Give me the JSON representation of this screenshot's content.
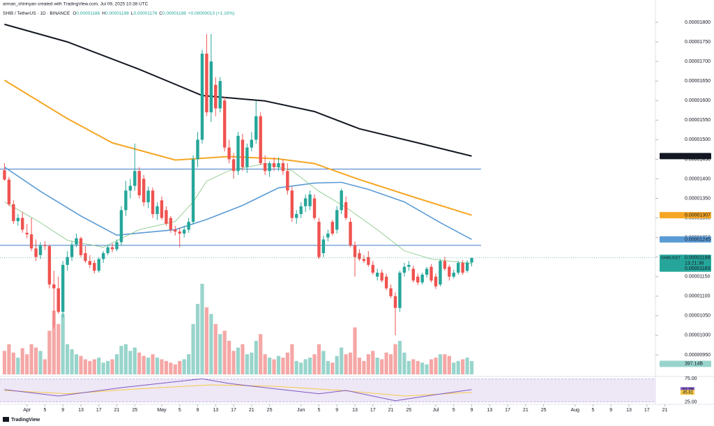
{
  "header": "arman_shirinyan created with TradingView.com, Jul 09, 2025 10:38 UTC",
  "brand": "TradingView",
  "chart_data": {
    "type": "candlestick",
    "symbol_line": "SHIB / TetherUS · 1D · BINANCE",
    "ohlc_labels": [
      "O",
      "H",
      "L",
      "C"
    ],
    "change": "+0.00000013 (+1.10%)",
    "symbol": "SHIBUSDT",
    "countdown": "13:21:38",
    "up_color": "#26a69a",
    "down_color": "#ef5350",
    "volume_up_color": "#98d4cb",
    "volume_down_color": "#f4a7a6",
    "xlim": [
      "2025-03-26",
      "2025-08-22"
    ],
    "ylim": [
      9e-06,
      1.85e-05
    ],
    "yticks": [
      {
        "value": 9.5e-06,
        "label": "0.00000950"
      },
      {
        "value": 1e-05,
        "label": "0.00001000"
      },
      {
        "value": 1.05e-05,
        "label": "0.00001050"
      },
      {
        "value": 1.1e-05,
        "label": "0.00001100"
      },
      {
        "value": 1.15e-05,
        "label": "0.00001150"
      },
      {
        "value": 1.2e-05,
        "label": "0.00001200"
      },
      {
        "value": 1.25e-05,
        "label": "0.00001250"
      },
      {
        "value": 1.3e-05,
        "label": "0.00001300"
      },
      {
        "value": 1.35e-05,
        "label": "0.00001350"
      },
      {
        "value": 1.4e-05,
        "label": "0.00001400"
      },
      {
        "value": 1.45e-05,
        "label": "0.00001450"
      },
      {
        "value": 1.5e-05,
        "label": "0.00001500"
      },
      {
        "value": 1.55e-05,
        "label": "0.00001550"
      },
      {
        "value": 1.6e-05,
        "label": "0.00001600"
      },
      {
        "value": 1.65e-05,
        "label": "0.00001650"
      },
      {
        "value": 1.7e-05,
        "label": "0.00001700"
      },
      {
        "value": 1.75e-05,
        "label": "0.00001750"
      },
      {
        "value": 1.8e-05,
        "label": "0.00001800"
      }
    ],
    "xticks": [
      {
        "value": "2025-04-01",
        "label": "Apr"
      },
      {
        "value": "2025-04-05",
        "label": "5"
      },
      {
        "value": "2025-04-09",
        "label": "9"
      },
      {
        "value": "2025-04-13",
        "label": "13"
      },
      {
        "value": "2025-04-17",
        "label": "17"
      },
      {
        "value": "2025-04-21",
        "label": "21"
      },
      {
        "value": "2025-04-25",
        "label": "25"
      },
      {
        "value": "2025-05-01",
        "label": "May"
      },
      {
        "value": "2025-05-05",
        "label": "5"
      },
      {
        "value": "2025-05-09",
        "label": "9"
      },
      {
        "value": "2025-05-13",
        "label": "13"
      },
      {
        "value": "2025-05-17",
        "label": "17"
      },
      {
        "value": "2025-05-21",
        "label": "21"
      },
      {
        "value": "2025-05-25",
        "label": "25"
      },
      {
        "value": "2025-06-01",
        "label": "Jun"
      },
      {
        "value": "2025-06-05",
        "label": "5"
      },
      {
        "value": "2025-06-09",
        "label": "9"
      },
      {
        "value": "2025-06-13",
        "label": "13"
      },
      {
        "value": "2025-06-17",
        "label": "17"
      },
      {
        "value": "2025-06-21",
        "label": "21"
      },
      {
        "value": "2025-06-25",
        "label": "25"
      },
      {
        "value": "2025-07-01",
        "label": "Jul"
      },
      {
        "value": "2025-07-05",
        "label": "5"
      },
      {
        "value": "2025-07-09",
        "label": "9"
      },
      {
        "value": "2025-07-13",
        "label": "13"
      },
      {
        "value": "2025-07-17",
        "label": "17"
      },
      {
        "value": "2025-07-21",
        "label": "21"
      },
      {
        "value": "2025-07-25",
        "label": "25"
      },
      {
        "value": "2025-08-01",
        "label": "Aug"
      },
      {
        "value": "2025-08-05",
        "label": "5"
      },
      {
        "value": "2025-08-09",
        "label": "9"
      },
      {
        "value": "2025-08-13",
        "label": "13"
      },
      {
        "value": "2025-08-17",
        "label": "17"
      },
      {
        "value": "2025-08-21",
        "label": "21"
      }
    ],
    "x": [
      "2025-03-27",
      "2025-03-28",
      "2025-03-29",
      "2025-03-30",
      "2025-03-31",
      "2025-04-01",
      "2025-04-02",
      "2025-04-03",
      "2025-04-04",
      "2025-04-05",
      "2025-04-06",
      "2025-04-07",
      "2025-04-08",
      "2025-04-09",
      "2025-04-10",
      "2025-04-11",
      "2025-04-12",
      "2025-04-13",
      "2025-04-14",
      "2025-04-15",
      "2025-04-16",
      "2025-04-17",
      "2025-04-18",
      "2025-04-19",
      "2025-04-20",
      "2025-04-21",
      "2025-04-22",
      "2025-04-23",
      "2025-04-24",
      "2025-04-25",
      "2025-04-26",
      "2025-04-27",
      "2025-04-28",
      "2025-04-29",
      "2025-04-30",
      "2025-05-01",
      "2025-05-02",
      "2025-05-03",
      "2025-05-04",
      "2025-05-05",
      "2025-05-06",
      "2025-05-07",
      "2025-05-08",
      "2025-05-09",
      "2025-05-10",
      "2025-05-11",
      "2025-05-12",
      "2025-05-13",
      "2025-05-14",
      "2025-05-15",
      "2025-05-16",
      "2025-05-17",
      "2025-05-18",
      "2025-05-19",
      "2025-05-20",
      "2025-05-21",
      "2025-05-22",
      "2025-05-23",
      "2025-05-24",
      "2025-05-25",
      "2025-05-26",
      "2025-05-27",
      "2025-05-28",
      "2025-05-29",
      "2025-05-30",
      "2025-05-31",
      "2025-06-01",
      "2025-06-02",
      "2025-06-03",
      "2025-06-04",
      "2025-06-05",
      "2025-06-06",
      "2025-06-07",
      "2025-06-08",
      "2025-06-09",
      "2025-06-10",
      "2025-06-11",
      "2025-06-12",
      "2025-06-13",
      "2025-06-14",
      "2025-06-15",
      "2025-06-16",
      "2025-06-17",
      "2025-06-18",
      "2025-06-19",
      "2025-06-20",
      "2025-06-21",
      "2025-06-22",
      "2025-06-23",
      "2025-06-24",
      "2025-06-25",
      "2025-06-26",
      "2025-06-27",
      "2025-06-28",
      "2025-06-29",
      "2025-06-30",
      "2025-07-01",
      "2025-07-02",
      "2025-07-03",
      "2025-07-04",
      "2025-07-05",
      "2025-07-06",
      "2025-07-07",
      "2025-07-08",
      "2025-07-09"
    ],
    "open": [
      1.422e-05,
      1.398e-05,
      1.335e-05,
      1.292e-05,
      1.3e-05,
      1.262e-05,
      1.258e-05,
      1.222e-05,
      1.205e-05,
      1.23e-05,
      1.228e-05,
      1.13e-05,
      1.12e-05,
      1.06e-05,
      1.18e-05,
      1.2e-05,
      1.232e-05,
      1.248e-05,
      1.21e-05,
      1.19e-05,
      1.185e-05,
      1.165e-05,
      1.195e-05,
      1.21e-05,
      1.225e-05,
      1.22e-05,
      1.238e-05,
      1.32e-05,
      1.37e-05,
      1.382e-05,
      1.42e-05,
      1.4e-05,
      1.34e-05,
      1.37e-05,
      1.31e-05,
      1.345e-05,
      1.32e-05,
      1.3e-05,
      1.27e-05,
      1.265e-05,
      1.26e-05,
      1.27e-05,
      1.29e-05,
      1.45e-05,
      1.5e-05,
      1.72e-05,
      1.57e-05,
      1.64e-05,
      1.58e-05,
      1.6e-05,
      1.48e-05,
      1.45e-05,
      1.42e-05,
      1.5e-05,
      1.43e-05,
      1.48e-05,
      1.5e-05,
      1.56e-05,
      1.44e-05,
      1.42e-05,
      1.44e-05,
      1.43e-05,
      1.44e-05,
      1.42e-05,
      1.37e-05,
      1.3e-05,
      1.31e-05,
      1.33e-05,
      1.33e-05,
      1.35e-05,
      1.29e-05,
      1.21e-05,
      1.25e-05,
      1.29e-05,
      1.27e-05,
      1.32e-05,
      1.34e-05,
      1.29e-05,
      1.23e-05,
      1.21e-05,
      1.195e-05,
      1.2e-05,
      1.18e-05,
      1.15e-05,
      1.16e-05,
      1.15e-05,
      1.12e-05,
      1.1e-05,
      1.07e-05,
      1.16e-05,
      1.175e-05,
      1.17e-05,
      1.15e-05,
      1.135e-05,
      1.155e-05,
      1.175e-05,
      1.15e-05,
      1.13e-05,
      1.19e-05,
      1.175e-05,
      1.15e-05,
      1.16e-05,
      1.185e-05,
      1.165e-05,
      1.186e-05
    ],
    "high": [
      1.44e-05,
      1.405e-05,
      1.345e-05,
      1.31e-05,
      1.315e-05,
      1.285e-05,
      1.3e-05,
      1.245e-05,
      1.238e-05,
      1.24e-05,
      1.232e-05,
      1.165e-05,
      1.15e-05,
      1.19e-05,
      1.215e-05,
      1.24e-05,
      1.26e-05,
      1.252e-05,
      1.228e-05,
      1.205e-05,
      1.192e-05,
      1.2e-05,
      1.215e-05,
      1.232e-05,
      1.235e-05,
      1.245e-05,
      1.33e-05,
      1.395e-05,
      1.4e-05,
      1.49e-05,
      1.43e-05,
      1.41e-05,
      1.38e-05,
      1.378e-05,
      1.34e-05,
      1.355e-05,
      1.33e-05,
      1.305e-05,
      1.28e-05,
      1.275e-05,
      1.28e-05,
      1.3e-05,
      1.46e-05,
      1.52e-05,
      1.73e-05,
      1.77e-05,
      1.77e-05,
      1.66e-05,
      1.66e-05,
      1.61e-05,
      1.5e-05,
      1.465e-05,
      1.52e-05,
      1.515e-05,
      1.49e-05,
      1.52e-05,
      1.6e-05,
      1.57e-05,
      1.46e-05,
      1.445e-05,
      1.455e-05,
      1.455e-05,
      1.45e-05,
      1.44e-05,
      1.38e-05,
      1.32e-05,
      1.34e-05,
      1.36e-05,
      1.37e-05,
      1.36e-05,
      1.3e-05,
      1.255e-05,
      1.27e-05,
      1.295e-05,
      1.33e-05,
      1.375e-05,
      1.355e-05,
      1.3e-05,
      1.24e-05,
      1.22e-05,
      1.205e-05,
      1.215e-05,
      1.19e-05,
      1.17e-05,
      1.168e-05,
      1.158e-05,
      1.13e-05,
      1.11e-05,
      1.165e-05,
      1.185e-05,
      1.19e-05,
      1.178e-05,
      1.158e-05,
      1.16e-05,
      1.175e-05,
      1.182e-05,
      1.158e-05,
      1.195e-05,
      1.2e-05,
      1.18e-05,
      1.168e-05,
      1.19e-05,
      1.192e-05,
      1.192e-05,
      1.198e-05
    ],
    "low": [
      1.395e-05,
      1.33e-05,
      1.285e-05,
      1.28e-05,
      1.262e-05,
      1.248e-05,
      1.215e-05,
      1.19e-05,
      1.195e-05,
      1.218e-05,
      1.12e-05,
      1.02e-05,
      1.055e-05,
      1.045e-05,
      1.165e-05,
      1.19e-05,
      1.225e-05,
      1.2e-05,
      1.185e-05,
      1.172e-05,
      1.158e-05,
      1.16e-05,
      1.185e-05,
      1.205e-05,
      1.212e-05,
      1.215e-05,
      1.23e-05,
      1.305e-05,
      1.35e-05,
      1.37e-05,
      1.35e-05,
      1.33e-05,
      1.325e-05,
      1.3e-05,
      1.295e-05,
      1.295e-05,
      1.28e-05,
      1.262e-05,
      1.255e-05,
      1.225e-05,
      1.25e-05,
      1.262e-05,
      1.285e-05,
      1.43e-05,
      1.49e-05,
      1.56e-05,
      1.545e-05,
      1.56e-05,
      1.57e-05,
      1.47e-05,
      1.44e-05,
      1.4e-05,
      1.41e-05,
      1.42e-05,
      1.415e-05,
      1.47e-05,
      1.49e-05,
      1.435e-05,
      1.41e-05,
      1.405e-05,
      1.42e-05,
      1.42e-05,
      1.41e-05,
      1.36e-05,
      1.29e-05,
      1.285e-05,
      1.3e-05,
      1.315e-05,
      1.32e-05,
      1.295e-05,
      1.195e-05,
      1.2e-05,
      1.24e-05,
      1.255e-05,
      1.26e-05,
      1.31e-05,
      1.295e-05,
      1.225e-05,
      1.15e-05,
      1.19e-05,
      1.185e-05,
      1.175e-05,
      1.155e-05,
      1.14e-05,
      1.135e-05,
      1.115e-05,
      1.095e-05,
      1e-05,
      1.06e-05,
      1.15e-05,
      1.165e-05,
      1.135e-05,
      1.128e-05,
      1.13e-05,
      1.148e-05,
      1.135e-05,
      1.118e-05,
      1.125e-05,
      1.165e-05,
      1.14e-05,
      1.145e-05,
      1.155e-05,
      1.155e-05,
      1.16e-05,
      1.176e-05
    ],
    "close": [
      1.398e-05,
      1.335e-05,
      1.292e-05,
      1.3e-05,
      1.27e-05,
      1.258e-05,
      1.222e-05,
      1.2e-05,
      1.23e-05,
      1.228e-05,
      1.13e-05,
      1.12e-05,
      1.06e-05,
      1.18e-05,
      1.2e-05,
      1.232e-05,
      1.248e-05,
      1.205e-05,
      1.19e-05,
      1.18e-05,
      1.165e-05,
      1.195e-05,
      1.21e-05,
      1.225e-05,
      1.22e-05,
      1.238e-05,
      1.32e-05,
      1.37e-05,
      1.382e-05,
      1.42e-05,
      1.358e-05,
      1.34e-05,
      1.37e-05,
      1.31e-05,
      1.33e-05,
      1.3e-05,
      1.285e-05,
      1.27e-05,
      1.265e-05,
      1.26e-05,
      1.27e-05,
      1.29e-05,
      1.45e-05,
      1.5e-05,
      1.72e-05,
      1.57e-05,
      1.7e-05,
      1.58e-05,
      1.65e-05,
      1.48e-05,
      1.45e-05,
      1.42e-05,
      1.51e-05,
      1.43e-05,
      1.48e-05,
      1.5e-05,
      1.56e-05,
      1.44e-05,
      1.42e-05,
      1.44e-05,
      1.43e-05,
      1.44e-05,
      1.42e-05,
      1.37e-05,
      1.3e-05,
      1.31e-05,
      1.33e-05,
      1.35e-05,
      1.36e-05,
      1.3e-05,
      1.2e-05,
      1.245e-05,
      1.26e-05,
      1.26e-05,
      1.32e-05,
      1.37e-05,
      1.3e-05,
      1.23e-05,
      1.2e-05,
      1.195e-05,
      1.19e-05,
      1.18e-05,
      1.16e-05,
      1.16e-05,
      1.14e-05,
      1.12e-05,
      1.1e-05,
      1.07e-05,
      1.16e-05,
      1.175e-05,
      1.18e-05,
      1.14e-05,
      1.135e-05,
      1.155e-05,
      1.17e-05,
      1.14e-05,
      1.125e-05,
      1.19e-05,
      1.17e-05,
      1.15e-05,
      1.16e-05,
      1.185e-05,
      1.16e-05,
      1.186e-05,
      1.198e-05
    ],
    "volume": [
      700,
      900,
      650,
      500,
      780,
      600,
      900,
      800,
      700,
      450,
      1300,
      1900,
      1500,
      1800,
      900,
      750,
      600,
      550,
      450,
      400,
      450,
      500,
      350,
      400,
      450,
      600,
      850,
      900,
      700,
      800,
      650,
      550,
      500,
      600,
      500,
      450,
      400,
      350,
      300,
      400,
      450,
      600,
      1500,
      2100,
      2700,
      2000,
      1800,
      1500,
      1200,
      1300,
      1000,
      700,
      800,
      900,
      600,
      650,
      1000,
      1200,
      600,
      500,
      450,
      550,
      500,
      650,
      900,
      400,
      350,
      450,
      500,
      600,
      900,
      700,
      400,
      350,
      550,
      800,
      600,
      650,
      1400,
      500,
      400,
      600,
      700,
      500,
      450,
      650,
      600,
      900,
      1000,
      650,
      400,
      450,
      400,
      350,
      300,
      450,
      500,
      600,
      600,
      550,
      350,
      400,
      450,
      500,
      397.14
    ],
    "volume_value_labels": {
      "104": "397.14B"
    },
    "moving_averages": [
      {
        "color": "#131722",
        "width": 2,
        "x": [
          "2025-03-27",
          "2025-04-10",
          "2025-04-26",
          "2025-05-10",
          "2025-05-24",
          "2025-06-04",
          "2025-06-14",
          "2025-06-27",
          "2025-07-09"
        ],
        "values": [
          1.795e-05,
          1.75e-05,
          1.68e-05,
          1.613e-05,
          1.599e-05,
          1.572e-05,
          1.528e-05,
          1.492e-05,
          1.458e-05
        ],
        "box_fg": "#ffffff"
      },
      {
        "color": "#f5a623",
        "width": 2,
        "x": [
          "2025-03-27",
          "2025-04-10",
          "2025-04-20",
          "2025-05-04",
          "2025-05-16",
          "2025-05-27",
          "2025-06-04",
          "2025-06-14",
          "2025-06-27",
          "2025-07-09"
        ],
        "values": [
          1.652e-05,
          1.554e-05,
          1.492e-05,
          1.448e-05,
          1.457e-05,
          1.451e-05,
          1.439e-05,
          1.398e-05,
          1.35e-05,
          1.307e-05
        ],
        "box_fg": "#131722"
      },
      {
        "color": "#5b9bd5",
        "width": 1.6,
        "x": [
          "2025-03-27",
          "2025-04-04",
          "2025-04-13",
          "2025-04-21",
          "2025-05-04",
          "2025-05-11",
          "2025-05-19",
          "2025-05-27",
          "2025-06-04",
          "2025-06-10",
          "2025-06-16",
          "2025-06-24",
          "2025-07-02",
          "2025-07-09"
        ],
        "values": [
          1.43e-05,
          1.368e-05,
          1.305e-05,
          1.256e-05,
          1.27e-05,
          1.296e-05,
          1.332e-05,
          1.377e-05,
          1.389e-05,
          1.391e-05,
          1.373e-05,
          1.341e-05,
          1.288e-05,
          1.245e-05
        ],
        "box_fg": "#131722"
      },
      {
        "color": "#7cc27c",
        "width": 0.8,
        "x": [
          "2025-03-27",
          "2025-04-04",
          "2025-04-10",
          "2025-04-18",
          "2025-04-26",
          "2025-05-04",
          "2025-05-08",
          "2025-05-11",
          "2025-05-16",
          "2025-05-24",
          "2025-05-30",
          "2025-06-05",
          "2025-06-11",
          "2025-06-18",
          "2025-06-24",
          "2025-06-30",
          "2025-07-09"
        ],
        "values": [
          1.341e-05,
          1.288e-05,
          1.243e-05,
          1.225e-05,
          1.27e-05,
          1.291e-05,
          1.341e-05,
          1.394e-05,
          1.421e-05,
          1.439e-05,
          1.421e-05,
          1.368e-05,
          1.327e-05,
          1.27e-05,
          1.216e-05,
          1.195e-05,
          1.183e-05
        ],
        "box_fg": "#ffffff"
      }
    ],
    "rsi": {
      "ylim": [
        20,
        80
      ],
      "yticks": [
        {
          "value": 75,
          "label": "75.00"
        },
        {
          "value": 25,
          "label": "25.00"
        }
      ],
      "series": [
        {
          "color": "#7e57c2",
          "x": [
            "2025-03-27",
            "2025-04-08",
            "2025-04-22",
            "2025-05-10",
            "2025-05-16",
            "2025-05-24",
            "2025-06-05",
            "2025-06-11",
            "2025-06-22",
            "2025-07-01",
            "2025-07-09"
          ],
          "values": [
            52,
            38,
            56,
            75,
            65,
            56,
            43,
            50,
            28,
            41,
            51.79
          ],
          "box_fg": "#ffffff"
        },
        {
          "color": "#f7c948",
          "x": [
            "2025-03-27",
            "2025-04-10",
            "2025-04-25",
            "2025-05-12",
            "2025-05-26",
            "2025-06-10",
            "2025-06-24",
            "2025-07-09"
          ],
          "values": [
            50,
            43,
            53,
            62,
            59,
            50,
            38,
            45.81
          ],
          "box_fg": "#131722"
        }
      ]
    },
    "levels": {
      "color": "#3d7cc9",
      "values": [
        1.425e-05,
        1.23e-05
      ]
    }
  }
}
